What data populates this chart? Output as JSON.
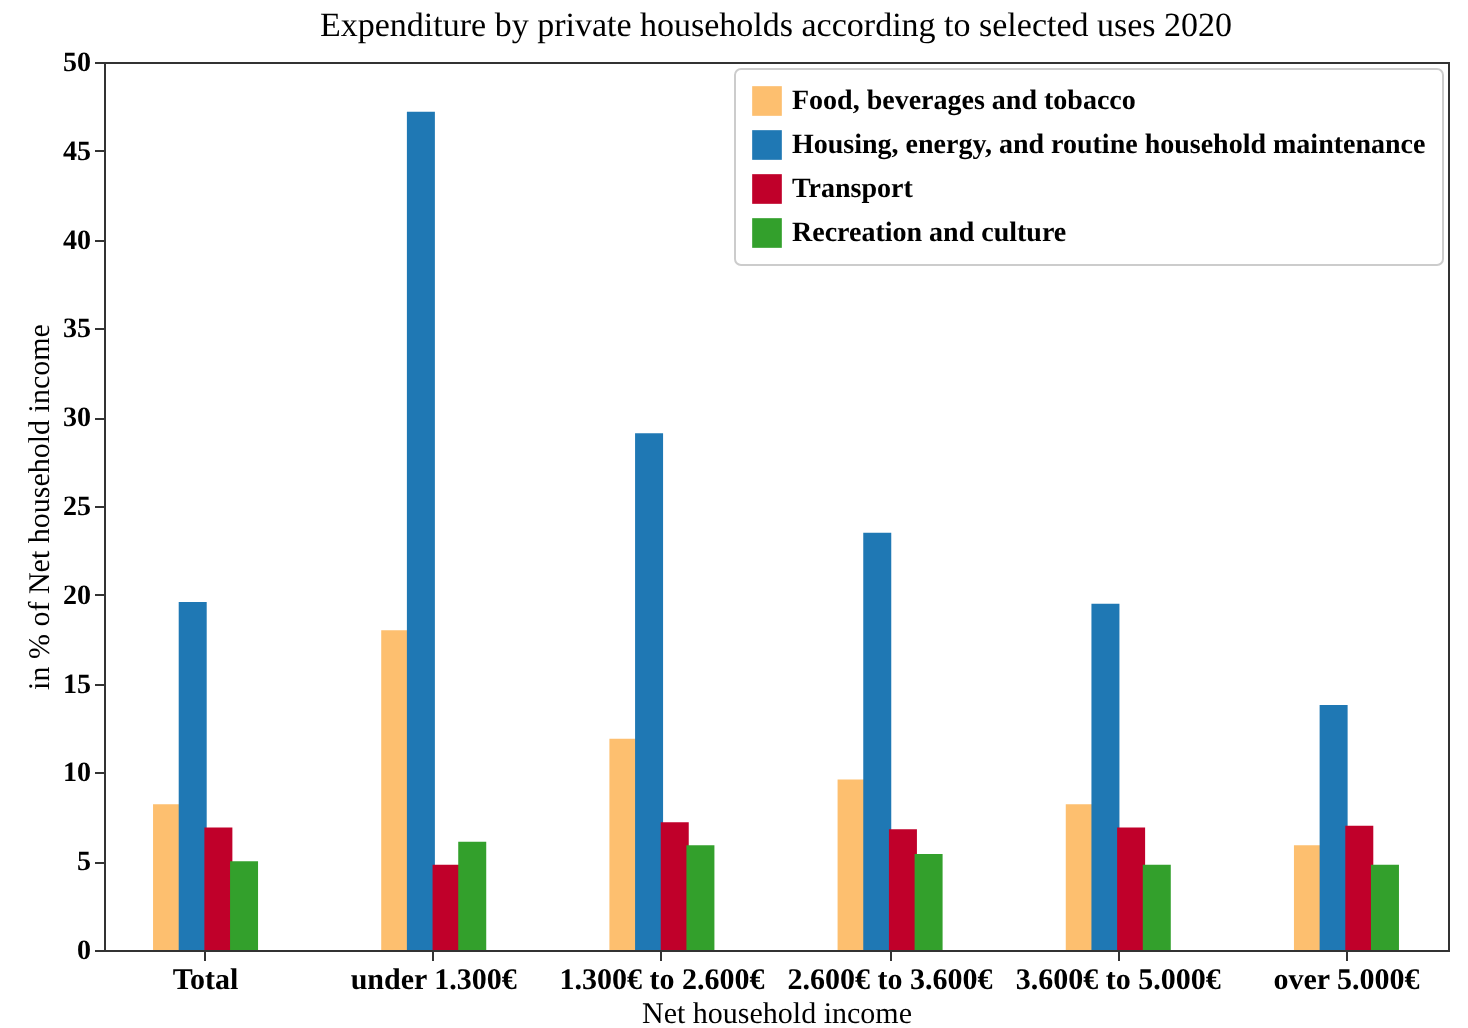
{
  "chart_data": {
    "type": "bar",
    "title": "Expenditure by private households according to selected uses 2020",
    "xlabel": "Net household income",
    "ylabel": "in % of Net household income",
    "categories": [
      "Total",
      "under 1.300€",
      "1.300€ to 2.600€",
      "2.600€ to 3.600€",
      "3.600€ to 5.000€",
      "over 5.000€"
    ],
    "series": [
      {
        "name": "Food, beverages and tobacco",
        "color": "#fdbf6f",
        "values": [
          8.2,
          18.0,
          11.9,
          9.6,
          8.2,
          5.9
        ]
      },
      {
        "name": "Housing, energy, and routine household maintenance",
        "color": "#1f78b4",
        "values": [
          19.6,
          47.2,
          29.1,
          23.5,
          19.5,
          13.8
        ]
      },
      {
        "name": "Transport",
        "color": "#c0002a",
        "values": [
          6.9,
          4.8,
          7.2,
          6.8,
          6.9,
          7.0
        ]
      },
      {
        "name": "Recreation and culture",
        "color": "#33a02c",
        "values": [
          5.0,
          6.1,
          5.9,
          5.4,
          4.8,
          4.8
        ]
      }
    ],
    "ylim": [
      0,
      50
    ],
    "yticks": [
      0,
      5,
      10,
      15,
      20,
      25,
      30,
      35,
      40,
      45,
      50
    ],
    "grid": false,
    "legend": "top right"
  }
}
